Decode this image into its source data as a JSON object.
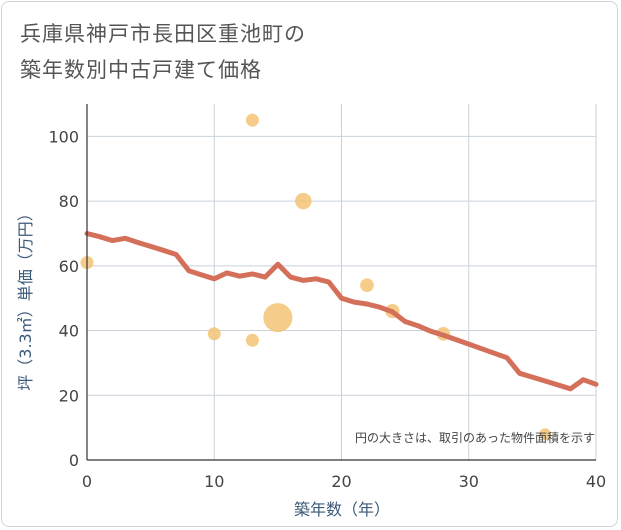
{
  "chart_data": {
    "type": "scatter",
    "title_lines": [
      "兵庫県神戸市長田区重池町の",
      "築年数別中古戸建て価格"
    ],
    "xlabel": "築年数（年）",
    "ylabel": "坪（3.3㎡）単価（万円）",
    "xlim": [
      0,
      40
    ],
    "ylim": [
      0,
      110
    ],
    "x_ticks": [
      0,
      10,
      20,
      30,
      40
    ],
    "y_ticks": [
      0,
      20,
      40,
      60,
      80,
      100
    ],
    "grid": true,
    "note": "円の大きさは、取引のあった物件面積を示す",
    "points": [
      {
        "x": 0,
        "y": 61,
        "size": 1
      },
      {
        "x": 10,
        "y": 39,
        "size": 1
      },
      {
        "x": 13,
        "y": 105,
        "size": 1
      },
      {
        "x": 13,
        "y": 37,
        "size": 1
      },
      {
        "x": 15,
        "y": 44,
        "size": 5
      },
      {
        "x": 17,
        "y": 80,
        "size": 1.6
      },
      {
        "x": 22,
        "y": 54,
        "size": 1.1
      },
      {
        "x": 24,
        "y": 46,
        "size": 1.2
      },
      {
        "x": 28,
        "y": 39,
        "size": 1.1
      },
      {
        "x": 36,
        "y": 8,
        "size": 0.8
      }
    ],
    "trend_line": {
      "x": [
        0,
        1,
        2,
        3,
        4,
        5,
        6,
        7,
        8,
        9,
        10,
        11,
        12,
        13,
        14,
        15,
        16,
        17,
        18,
        19,
        20,
        21,
        22,
        23,
        24,
        25,
        26,
        27,
        28,
        29,
        30,
        31,
        32,
        33,
        34,
        35,
        36,
        37,
        38,
        39,
        40
      ],
      "y": [
        70,
        69,
        67.8,
        68.5,
        67.2,
        66,
        64.8,
        63.5,
        58.5,
        57.2,
        56,
        57.8,
        56.8,
        57.5,
        56.5,
        60.5,
        56.5,
        55.5,
        56,
        55,
        50,
        48.8,
        48.2,
        47.2,
        45.8,
        42.8,
        41.5,
        39.8,
        38.6,
        37.2,
        35.8,
        34.4,
        33,
        31.6,
        26.8,
        25.6,
        24.4,
        23.2,
        22,
        24.8,
        23.4
      ]
    },
    "colors": {
      "line": "#d4705a",
      "bubble": "#f3c374",
      "grid": "#c9d2dc",
      "axis": "#333333",
      "tick_label": "#444444",
      "axis_label": "#3c5a78"
    }
  }
}
